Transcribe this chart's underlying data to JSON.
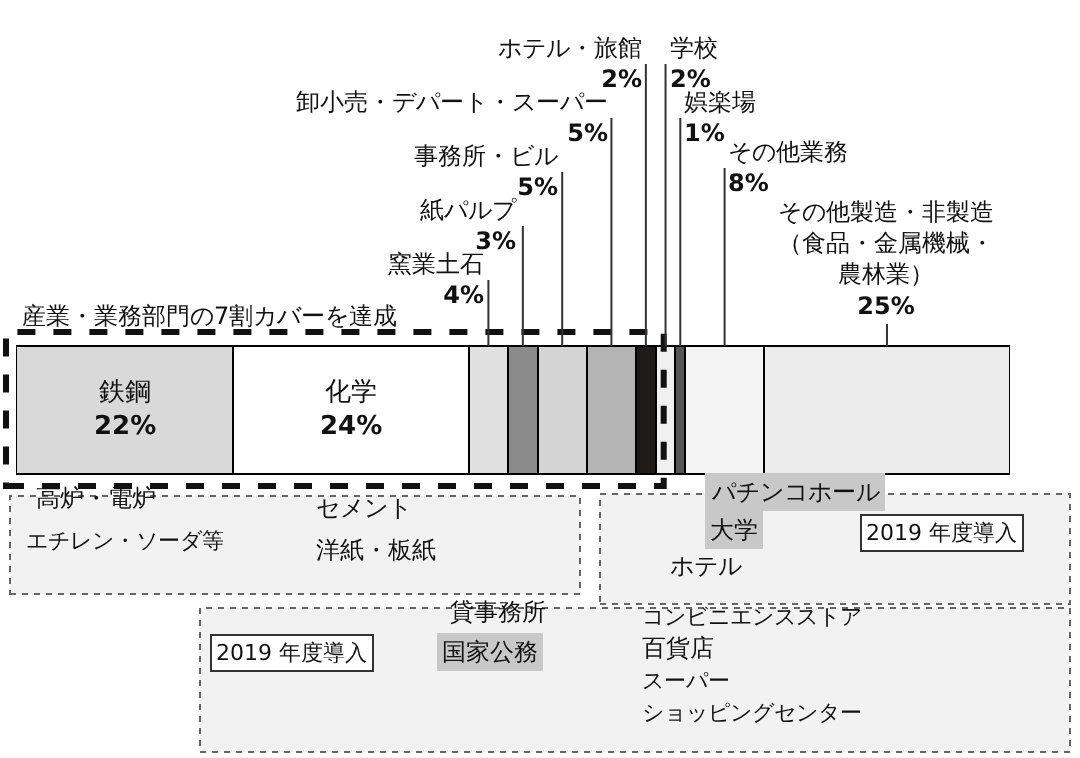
{
  "chart_data": {
    "type": "bar",
    "orientation": "horizontal",
    "stacked": true,
    "legend": false,
    "categories": [
      null
    ],
    "series": [
      {
        "name": "鉄鋼",
        "color": "#d9d9d9",
        "values": [
          22
        ],
        "value_labels": [
          "22%"
        ]
      },
      {
        "name": "化学",
        "color": "#ffffff",
        "values": [
          24
        ],
        "value_labels": [
          "24%"
        ]
      },
      {
        "name": "窯業土石",
        "color": "#e0e0e0",
        "values": [
          4
        ],
        "value_labels": [
          "4%"
        ]
      },
      {
        "name": "紙パルプ",
        "color": "#8a8a8a",
        "values": [
          3
        ],
        "value_labels": [
          "3%"
        ]
      },
      {
        "name": "事務所・ビル",
        "color": "#d4d4d4",
        "values": [
          5
        ],
        "value_labels": [
          "5%"
        ]
      },
      {
        "name": "卸小売・デパート・スーパー",
        "color": "#b4b4b4",
        "values": [
          5
        ],
        "value_labels": [
          "5%"
        ]
      },
      {
        "name": "ホテル・旅館",
        "color": "#1e1a18",
        "values": [
          2
        ],
        "value_labels": [
          "2%"
        ]
      },
      {
        "name": "学校",
        "color": "#f0f0f0",
        "values": [
          2
        ],
        "value_labels": [
          "2%"
        ]
      },
      {
        "name": "娯楽場",
        "color": "#555555",
        "values": [
          1
        ],
        "value_labels": [
          "1%"
        ]
      },
      {
        "name": "その他業務",
        "color": "#f4f4f4",
        "values": [
          8
        ],
        "value_labels": [
          "8%"
        ]
      },
      {
        "name": "その他製造・非製造（食品・金属機械・農林業）",
        "color": "#ececec",
        "values": [
          25
        ],
        "value_labels": [
          "25%"
        ]
      }
    ],
    "annotations": [
      "産業・業務部門の7割カバーを達成",
      "高炉・電炉",
      "エチレン・ソーダ等",
      "セメント",
      "洋紙・板紙",
      "貸事務所",
      "2019 年度導入",
      "国家公務",
      "ホテル",
      "コンビニエンスストア",
      "百貨店",
      "スーパー",
      "ショッピングセンター",
      "パチンコホール",
      "大学",
      "2019 年度導入"
    ]
  }
}
